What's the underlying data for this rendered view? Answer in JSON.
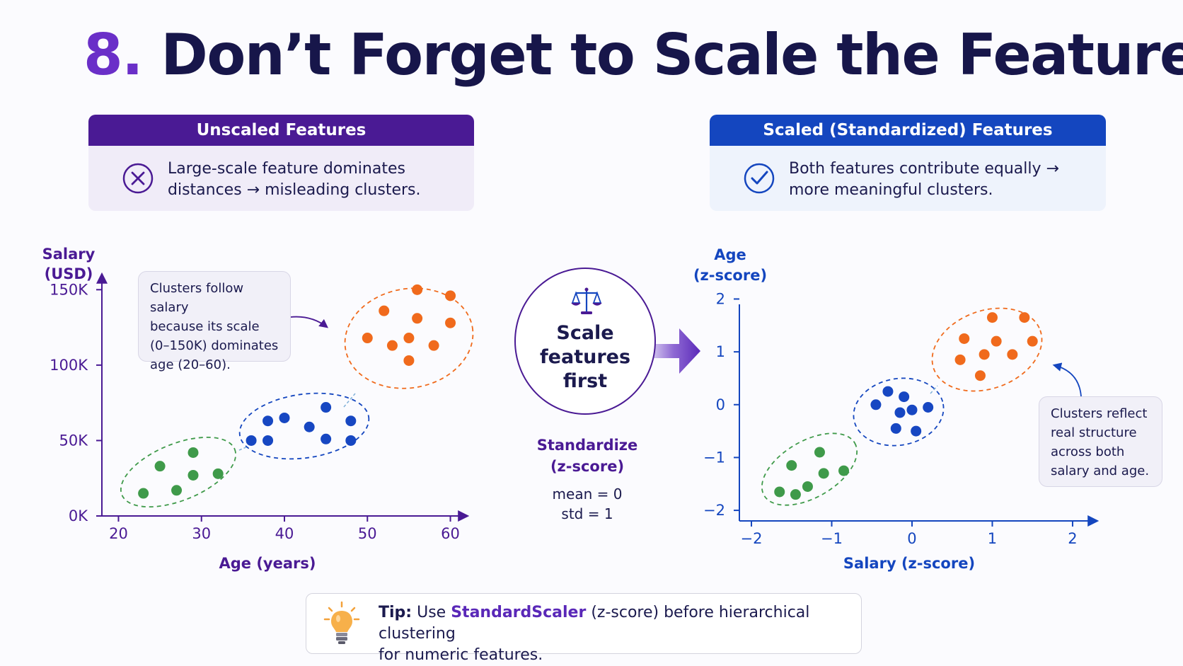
{
  "title": {
    "number": "8.",
    "text": "Don’t Forget to Scale the Features"
  },
  "colors": {
    "purple": "#4a1a94",
    "blue": "#1446bf",
    "green": "#3f9a4a",
    "navy_points": "#1747c2",
    "orange": "#f06a1c",
    "accent": "#6a2fc8"
  },
  "left_panel": {
    "header": "Unscaled Features",
    "line1": "Large-scale feature dominates",
    "line2": "distances → misleading clusters.",
    "icon": "x-circle-icon"
  },
  "right_panel": {
    "header": "Scaled (Standardized) Features",
    "line1": "Both features contribute equally →",
    "line2": "more meaningful clusters.",
    "icon": "check-circle-icon"
  },
  "left_callout": {
    "l1": "Clusters follow salary",
    "l2": "because its scale",
    "l3": "(0–150K) dominates",
    "l4": "age (20–60)."
  },
  "right_callout": {
    "l1": "Clusters reflect",
    "l2": "real structure",
    "l3": "across both",
    "l4": "salary and age."
  },
  "center": {
    "l1": "Scale",
    "l2": "features",
    "l3": "first",
    "icon": "balance-scale-icon",
    "std_l1": "Standardize",
    "std_l2": "(z-score)",
    "mean": "mean = 0",
    "std": "std = 1"
  },
  "tip": {
    "label": "Tip:",
    "pre": "Use",
    "keyword": "StandardScaler",
    "post": "(z-score) before hierarchical clustering",
    "line2": "for numeric features.",
    "icon": "lightbulb-icon"
  },
  "chart_data": [
    {
      "type": "scatter",
      "title": "",
      "xlabel": "Age (years)",
      "ylabel_l1": "Salary",
      "ylabel_l2": "(USD)",
      "xlim": [
        18,
        62
      ],
      "ylim": [
        0,
        160000
      ],
      "xticks": [
        20,
        30,
        40,
        50,
        60
      ],
      "xtick_labels": [
        "20",
        "30",
        "40",
        "50",
        "60"
      ],
      "yticks": [
        0,
        50000,
        100000,
        150000
      ],
      "ytick_labels": [
        "0K",
        "50K",
        "100K",
        "150K"
      ],
      "grid": false,
      "series": [
        {
          "color": "#3f9a4a",
          "points": [
            [
              23,
              15000
            ],
            [
              25,
              33000
            ],
            [
              27,
              17000
            ],
            [
              29,
              42000
            ],
            [
              29,
              27000
            ],
            [
              32,
              28000
            ]
          ]
        },
        {
          "color": "#1747c2",
          "points": [
            [
              36,
              50000
            ],
            [
              38,
              63000
            ],
            [
              40,
              65000
            ],
            [
              38,
              50000
            ],
            [
              43,
              59000
            ],
            [
              45,
              72000
            ],
            [
              45,
              51000
            ],
            [
              48,
              63000
            ],
            [
              48,
              50000
            ]
          ]
        },
        {
          "color": "#f06a1c",
          "points": [
            [
              50,
              118000
            ],
            [
              52,
              136000
            ],
            [
              53,
              113000
            ],
            [
              55,
              118000
            ],
            [
              55,
              103000
            ],
            [
              56,
              131000
            ],
            [
              56,
              150000
            ],
            [
              58,
              113000
            ],
            [
              60,
              146000
            ],
            [
              60,
              128000
            ]
          ]
        }
      ]
    },
    {
      "type": "scatter",
      "title": "",
      "xlabel": "Salary (z-score)",
      "ylabel_l1": "Age",
      "ylabel_l2": "(z-score)",
      "xlim": [
        -2.15,
        2.3
      ],
      "ylim": [
        -2.2,
        2.1
      ],
      "xticks": [
        -2,
        -1,
        0,
        1,
        2
      ],
      "xtick_labels": [
        "−2",
        "−1",
        "0",
        "1",
        "2"
      ],
      "yticks": [
        -2,
        -1,
        0,
        1,
        2
      ],
      "ytick_labels": [
        "−2",
        "−1",
        "0",
        "1",
        "2"
      ],
      "grid": false,
      "series": [
        {
          "color": "#3f9a4a",
          "points": [
            [
              -1.65,
              -1.65
            ],
            [
              -1.5,
              -1.15
            ],
            [
              -1.45,
              -1.7
            ],
            [
              -1.3,
              -1.55
            ],
            [
              -1.15,
              -0.9
            ],
            [
              -1.1,
              -1.3
            ],
            [
              -0.85,
              -1.25
            ]
          ]
        },
        {
          "color": "#1747c2",
          "points": [
            [
              -0.45,
              0.0
            ],
            [
              -0.3,
              0.25
            ],
            [
              -0.2,
              -0.45
            ],
            [
              -0.15,
              -0.15
            ],
            [
              -0.1,
              0.15
            ],
            [
              0.0,
              -0.1
            ],
            [
              0.05,
              -0.5
            ],
            [
              0.2,
              -0.05
            ]
          ]
        },
        {
          "color": "#f06a1c",
          "points": [
            [
              0.6,
              0.85
            ],
            [
              0.65,
              1.25
            ],
            [
              0.85,
              0.55
            ],
            [
              0.9,
              0.95
            ],
            [
              1.0,
              1.65
            ],
            [
              1.05,
              1.2
            ],
            [
              1.25,
              0.95
            ],
            [
              1.4,
              1.65
            ],
            [
              1.5,
              1.2
            ]
          ]
        }
      ]
    }
  ]
}
